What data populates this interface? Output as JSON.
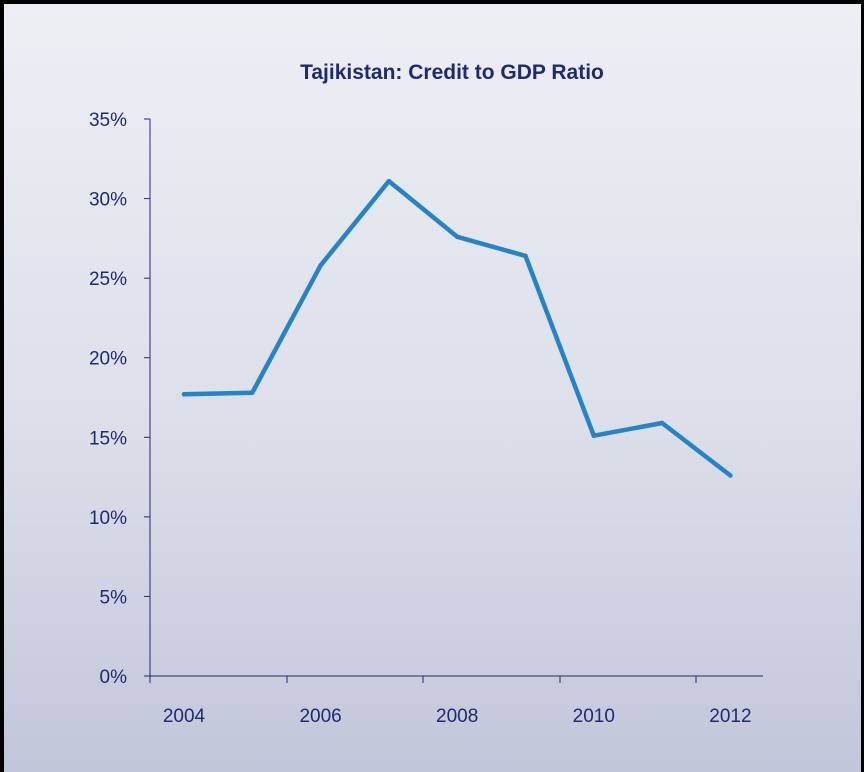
{
  "colors": {
    "line": "#2683c6",
    "axis": "#1f2a70",
    "text": "#1f2a70"
  },
  "chart_data": {
    "type": "line",
    "title": "Tajikistan: Credit to GDP Ratio",
    "xlabel": "",
    "ylabel": "",
    "x_tick_labels": [
      "2004",
      "2006",
      "2008",
      "2010",
      "2012"
    ],
    "y_tick_labels": [
      "0%",
      "5%",
      "10%",
      "15%",
      "20%",
      "25%",
      "30%",
      "35%"
    ],
    "ylim": [
      0,
      35
    ],
    "xlim": [
      2004,
      2012
    ],
    "grid": false,
    "legend": "none",
    "series": [
      {
        "x": [
          2004.0,
          2005.0,
          2006.0,
          2007.0,
          2008.0,
          2009.0,
          2010.0,
          2011.0,
          2012.0
        ],
        "values": [
          17.7,
          17.8,
          25.8,
          31.1,
          27.6,
          26.4,
          15.1,
          15.9,
          12.6
        ]
      }
    ]
  }
}
